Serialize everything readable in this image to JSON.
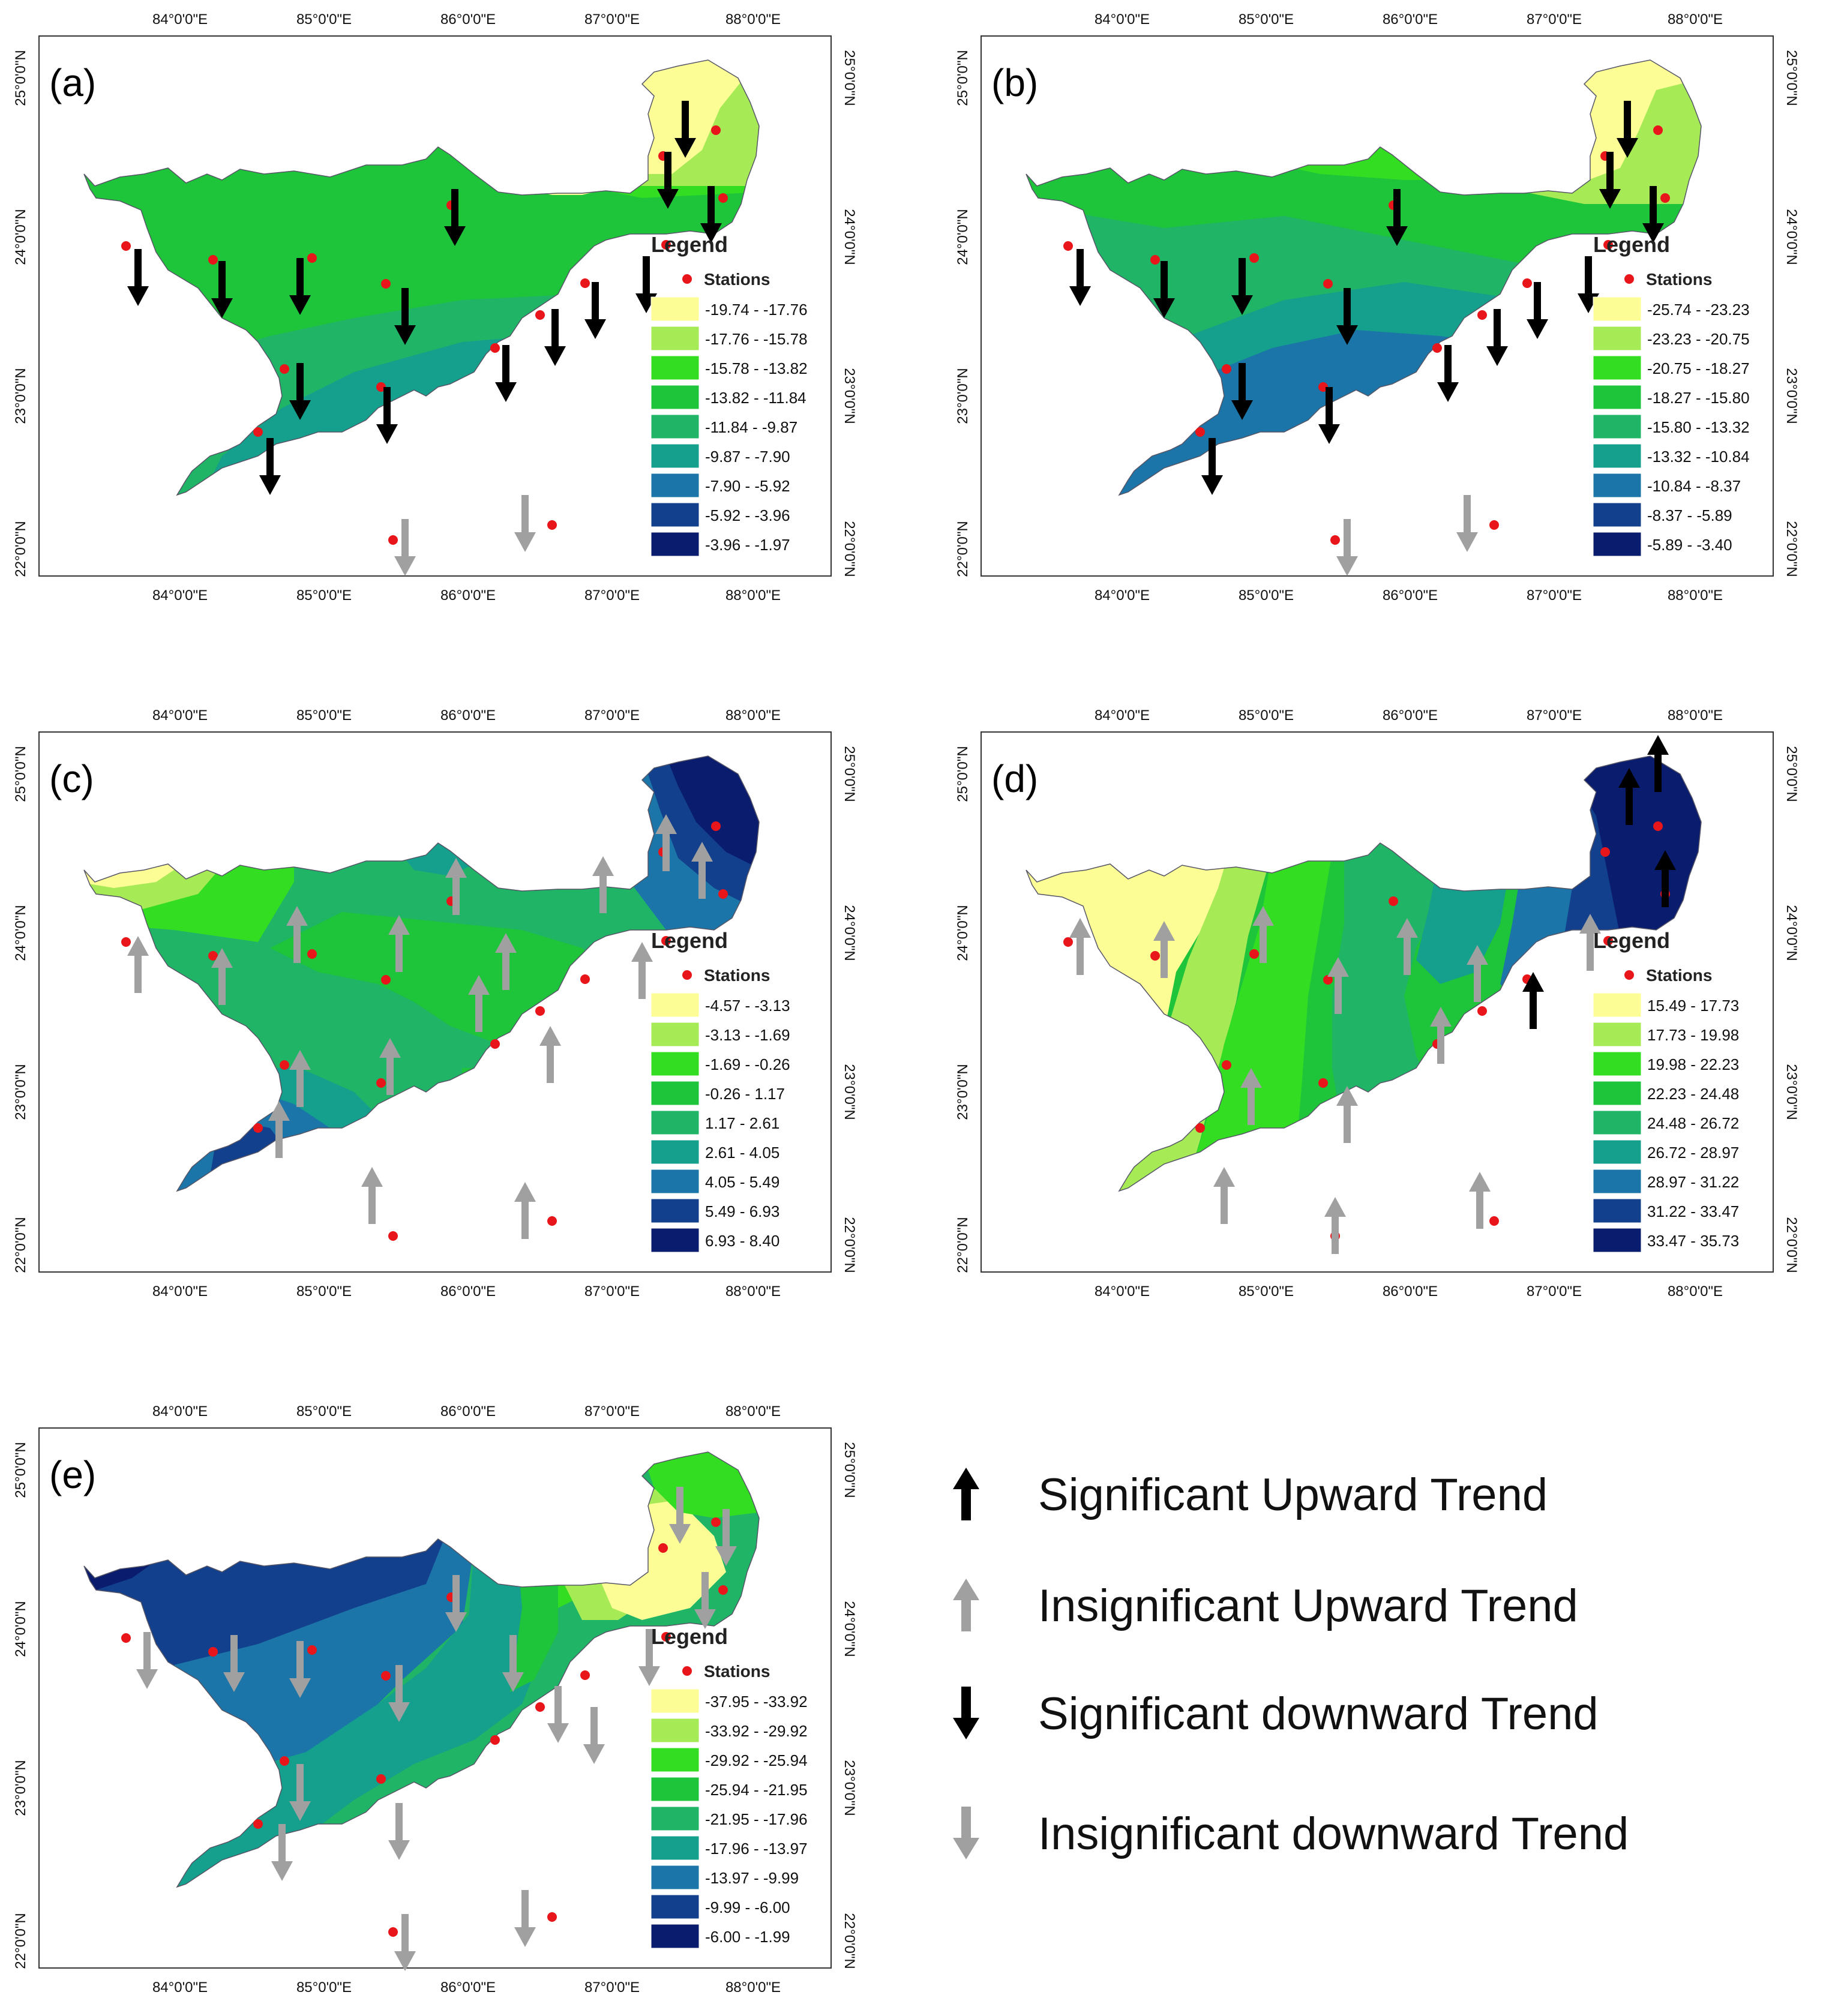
{
  "common": {
    "lon_labels": [
      "84°0'0\"E",
      "85°0'0\"E",
      "86°0'0\"E",
      "87°0'0\"E",
      "88°0'0\"E"
    ],
    "lat_labels": [
      "25°0'0\"N",
      "24°0'0\"N",
      "23°0'0\"N",
      "22°0'0\"N"
    ],
    "legend_title": "Legend",
    "stations_label": "Stations"
  },
  "colors": {
    "station": "#e8161a",
    "sig_arrow": "#000000",
    "insig_arrow": "#a0a0a0"
  },
  "panels": [
    {
      "id": "a",
      "label": "(a)",
      "trend": "down",
      "classes": [
        {
          "range": "-19.74 - -17.76",
          "color": "#fdfd96"
        },
        {
          "range": "-17.76 - -15.78",
          "color": "#a6ea55"
        },
        {
          "range": "-15.78 - -13.82",
          "color": "#33dd22"
        },
        {
          "range": "-13.82 - -11.84",
          "color": "#1ec43a"
        },
        {
          "range": "-11.84 - -9.87",
          "color": "#1fb466"
        },
        {
          "range": "-9.87 - -7.90",
          "color": "#14a08c"
        },
        {
          "range": "-7.90 - -5.92",
          "color": "#1b75a8"
        },
        {
          "range": "-5.92 - -3.96",
          "color": "#12408c"
        },
        {
          "range": "-3.96 - -1.97",
          "color": "#0a1c6e"
        }
      ]
    },
    {
      "id": "b",
      "label": "(b)",
      "trend": "down",
      "classes": [
        {
          "range": "-25.74 - -23.23",
          "color": "#fdfd96"
        },
        {
          "range": "-23.23 - -20.75",
          "color": "#a6ea55"
        },
        {
          "range": "-20.75 - -18.27",
          "color": "#33dd22"
        },
        {
          "range": "-18.27 - -15.80",
          "color": "#1ec43a"
        },
        {
          "range": "-15.80 - -13.32",
          "color": "#1fb466"
        },
        {
          "range": "-13.32 - -10.84",
          "color": "#14a08c"
        },
        {
          "range": "-10.84 - -8.37",
          "color": "#1b75a8"
        },
        {
          "range": "-8.37 - -5.89",
          "color": "#12408c"
        },
        {
          "range": "-5.89 - -3.40",
          "color": "#0a1c6e"
        }
      ]
    },
    {
      "id": "c",
      "label": "(c)",
      "trend": "up",
      "classes": [
        {
          "range": "-4.57 - -3.13",
          "color": "#fdfd96"
        },
        {
          "range": "-3.13 - -1.69",
          "color": "#a6ea55"
        },
        {
          "range": "-1.69 - -0.26",
          "color": "#33dd22"
        },
        {
          "range": "-0.26 - 1.17",
          "color": "#1ec43a"
        },
        {
          "range": "1.17 - 2.61",
          "color": "#1fb466"
        },
        {
          "range": "2.61 - 4.05",
          "color": "#14a08c"
        },
        {
          "range": "4.05 - 5.49",
          "color": "#1b75a8"
        },
        {
          "range": "5.49 - 6.93",
          "color": "#12408c"
        },
        {
          "range": "6.93 - 8.40",
          "color": "#0a1c6e"
        }
      ]
    },
    {
      "id": "d",
      "label": "(d)",
      "trend": "up",
      "classes": [
        {
          "range": "15.49 - 17.73",
          "color": "#fdfd96"
        },
        {
          "range": "17.73 - 19.98",
          "color": "#a6ea55"
        },
        {
          "range": "19.98 - 22.23",
          "color": "#33dd22"
        },
        {
          "range": "22.23 - 24.48",
          "color": "#1ec43a"
        },
        {
          "range": "24.48 - 26.72",
          "color": "#1fb466"
        },
        {
          "range": "26.72 - 28.97",
          "color": "#14a08c"
        },
        {
          "range": "28.97 - 31.22",
          "color": "#1b75a8"
        },
        {
          "range": "31.22 - 33.47",
          "color": "#12408c"
        },
        {
          "range": "33.47 - 35.73",
          "color": "#0a1c6e"
        }
      ]
    },
    {
      "id": "e",
      "label": "(e)",
      "trend": "down",
      "classes": [
        {
          "range": "-37.95 - -33.92",
          "color": "#fdfd96"
        },
        {
          "range": "-33.92 - -29.92",
          "color": "#a6ea55"
        },
        {
          "range": "-29.92 - -25.94",
          "color": "#33dd22"
        },
        {
          "range": "-25.94 - -21.95",
          "color": "#1ec43a"
        },
        {
          "range": "-21.95 - -17.96",
          "color": "#1fb466"
        },
        {
          "range": "-17.96 - -13.97",
          "color": "#14a08c"
        },
        {
          "range": "-13.97 - -9.99",
          "color": "#1b75a8"
        },
        {
          "range": "-9.99 - -6.00",
          "color": "#12408c"
        },
        {
          "range": "-6.00 - -1.99",
          "color": "#0a1c6e"
        }
      ]
    }
  ],
  "trend_legend": [
    {
      "label": "Significant Upward Trend",
      "direction": "up",
      "significant": true
    },
    {
      "label": "Insignificant Upward Trend",
      "direction": "up",
      "significant": false
    },
    {
      "label": "Significant downward Trend",
      "direction": "down",
      "significant": true
    },
    {
      "label": "Insignificant downward Trend",
      "direction": "down",
      "significant": false
    }
  ]
}
